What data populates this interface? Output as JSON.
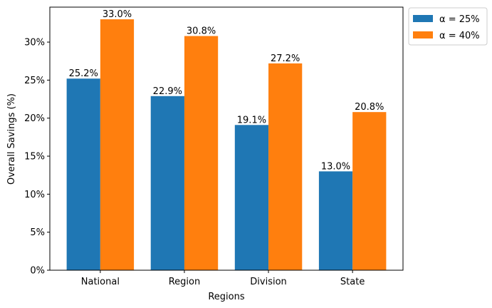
{
  "chart_data": {
    "type": "bar",
    "title": "",
    "xlabel": "Regions",
    "ylabel": "Overall Savings (%)",
    "categories": [
      "National",
      "Region",
      "Division",
      "State"
    ],
    "series": [
      {
        "name": "α = 25%",
        "color": "#1f77b4",
        "values": [
          25.2,
          22.9,
          19.1,
          13.0
        ]
      },
      {
        "name": "α = 40%",
        "color": "#ff7f0e",
        "values": [
          33.0,
          30.8,
          27.2,
          20.8
        ]
      }
    ],
    "data_labels": [
      [
        "25.2%",
        "22.9%",
        "19.1%",
        "13.0%"
      ],
      [
        "33.0%",
        "30.8%",
        "27.2%",
        "20.8%"
      ]
    ],
    "yticks": [
      0,
      5,
      10,
      15,
      20,
      25,
      30
    ],
    "ytick_labels": [
      "0%",
      "5%",
      "10%",
      "15%",
      "20%",
      "25%",
      "30%"
    ],
    "ylim": [
      0,
      34.6
    ],
    "grid": false,
    "legend_position": "outside-top-right"
  }
}
